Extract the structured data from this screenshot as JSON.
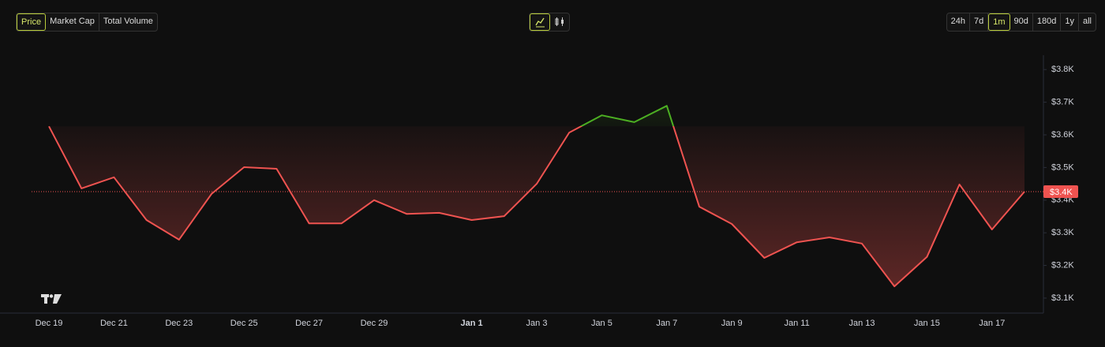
{
  "tabs": [
    "Price",
    "Market Cap",
    "Total Volume"
  ],
  "active_tab": 0,
  "ranges": [
    "24h",
    "7d",
    "1m",
    "90d",
    "180d",
    "1y",
    "all"
  ],
  "active_range": 2,
  "chart_data": {
    "type": "line",
    "categories": [
      "Dec 19",
      null,
      "Dec 21",
      null,
      "Dec 23",
      null,
      "Dec 25",
      null,
      "Dec 27",
      null,
      "Dec 29",
      null,
      null,
      "Jan 1",
      null,
      "Jan 3",
      null,
      "Jan 5",
      null,
      "Jan 7",
      null,
      "Jan 9",
      null,
      "Jan 11",
      null,
      "Jan 13",
      null,
      "Jan 15",
      null,
      "Jan 17",
      null
    ],
    "values": [
      3626,
      3436,
      3470,
      3339,
      3279,
      3419,
      3501,
      3496,
      3329,
      3329,
      3400,
      3358,
      3361,
      3339,
      3351,
      3450,
      3607,
      3660,
      3639,
      3689,
      3380,
      3327,
      3223,
      3271,
      3286,
      3267,
      3136,
      3226,
      3448,
      3310,
      3426
    ],
    "value_labels": [
      null,
      null,
      null,
      null,
      null,
      null,
      null,
      null,
      null,
      null,
      null,
      null,
      null,
      null,
      null,
      null,
      null,
      null,
      null,
      null,
      null,
      null,
      null,
      null,
      null,
      null,
      null,
      null,
      null,
      null,
      "$3.4K"
    ],
    "color": "#ef5350",
    "up_color": "#4caf22",
    "ylim": [
      3054,
      3844
    ],
    "yticks": [
      {
        "value": 3100,
        "label": "$3.1K"
      },
      {
        "value": 3200,
        "label": "$3.2K"
      },
      {
        "value": 3300,
        "label": "$3.3K"
      },
      {
        "value": 3400,
        "label": "$3.4K"
      },
      {
        "value": 3500,
        "label": "$3.5K"
      },
      {
        "value": 3600,
        "label": "$3.6K"
      },
      {
        "value": 3700,
        "label": "$3.7K"
      },
      {
        "value": 3800,
        "label": "$3.8K"
      }
    ],
    "grid": false
  }
}
